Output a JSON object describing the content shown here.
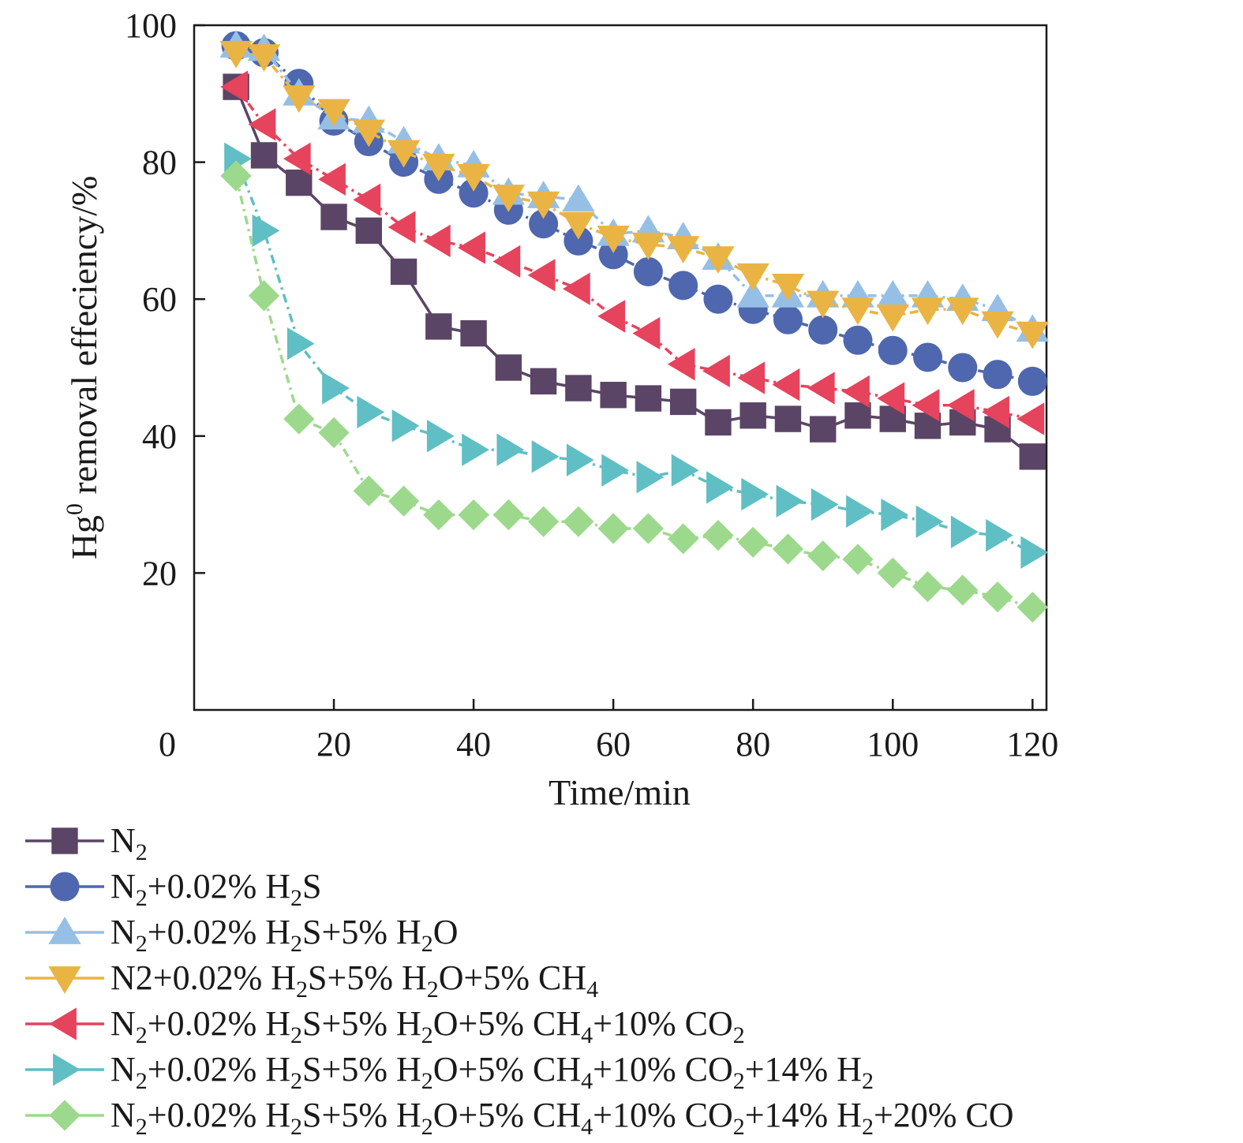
{
  "chart_data": {
    "type": "line",
    "title": "",
    "xlabel": "Time/min",
    "ylabel": {
      "base": "Hg",
      "sup": "0",
      "rest": " removal effeciency/%"
    },
    "xlim": [
      0,
      122
    ],
    "ylim": [
      0,
      100
    ],
    "xticks": [
      20,
      40,
      60,
      80,
      100,
      120
    ],
    "yticks": [
      20,
      40,
      60,
      80,
      100
    ],
    "origin_label": "0",
    "grid": false,
    "legend_position": "bottom-left",
    "x": [
      6,
      10,
      15,
      20,
      25,
      30,
      35,
      40,
      45,
      50,
      55,
      60,
      65,
      70,
      75,
      80,
      85,
      90,
      95,
      100,
      105,
      110,
      115,
      120
    ],
    "series": [
      {
        "name": "N2",
        "label_parts": [
          {
            "t": "N"
          },
          {
            "t": "2",
            "sub": true
          }
        ],
        "color": "#5b4566",
        "marker": "square",
        "line": "solid",
        "values": [
          91,
          81,
          77,
          72,
          70,
          64,
          56,
          55,
          50,
          48,
          47,
          46,
          45.5,
          45,
          42,
          43,
          42.5,
          41,
          43,
          42.5,
          41.5,
          42,
          41,
          37
        ]
      },
      {
        "name": "N2+0.02% H2S",
        "label_parts": [
          {
            "t": "N"
          },
          {
            "t": "2",
            "sub": true
          },
          {
            "t": "+0.02% H"
          },
          {
            "t": "2",
            "sub": true
          },
          {
            "t": "S"
          }
        ],
        "color": "#4e67ae",
        "marker": "circle",
        "line": "dashdot",
        "values": [
          97,
          96,
          91.5,
          86,
          83,
          80,
          77.5,
          75.5,
          73,
          71,
          68.5,
          66.5,
          64,
          62,
          60,
          58.5,
          57,
          55.5,
          54,
          52.5,
          51.5,
          50,
          49,
          48
        ]
      },
      {
        "name": "N2+0.02% H2S+5% H2O",
        "label_parts": [
          {
            "t": "N"
          },
          {
            "t": "2",
            "sub": true
          },
          {
            "t": "+0.02% H"
          },
          {
            "t": "2",
            "sub": true
          },
          {
            "t": "S+5% H"
          },
          {
            "t": "2",
            "sub": true
          },
          {
            "t": "O"
          }
        ],
        "color": "#96bfe5",
        "marker": "triangle-up",
        "line": "dashdot",
        "values": [
          97,
          96.5,
          90,
          86.5,
          86,
          83,
          80.5,
          79.5,
          75.5,
          75,
          74.5,
          69.5,
          70,
          69,
          66,
          60.5,
          60.5,
          60.5,
          60.5,
          60.5,
          60.5,
          60,
          58.5,
          55.5
        ]
      },
      {
        "name": "N2+0.02% H2S+5% H2O+5% CH4",
        "label_parts": [
          {
            "t": "N2+0.02% H"
          },
          {
            "t": "2",
            "sub": true
          },
          {
            "t": "S+5% H"
          },
          {
            "t": "2",
            "sub": true
          },
          {
            "t": "O+5% CH"
          },
          {
            "t": "4",
            "sub": true
          }
        ],
        "color": "#eab444",
        "marker": "triangle-down",
        "line": "dashdot",
        "values": [
          96,
          95.5,
          89.5,
          87.5,
          84.5,
          81.5,
          79.5,
          78,
          75,
          74,
          71,
          69,
          68,
          67.5,
          66,
          63.5,
          62,
          59.5,
          58.5,
          57.5,
          58.5,
          58.5,
          56.5,
          55
        ]
      },
      {
        "name": "N2+0.02% H2S+5% H2O+5% CH4+10% CO2",
        "label_parts": [
          {
            "t": "N"
          },
          {
            "t": "2",
            "sub": true
          },
          {
            "t": "+0.02% H"
          },
          {
            "t": "2",
            "sub": true
          },
          {
            "t": "S+5% H"
          },
          {
            "t": "2",
            "sub": true
          },
          {
            "t": "O+5% CH"
          },
          {
            "t": "4",
            "sub": true
          },
          {
            "t": "+10% CO"
          },
          {
            "t": "2",
            "sub": true
          }
        ],
        "color": "#e6435d",
        "marker": "triangle-left",
        "line": "dashdot",
        "values": [
          91,
          85.5,
          80.5,
          77.5,
          74.5,
          70.5,
          68.5,
          67.5,
          65.5,
          63.5,
          61.5,
          57.5,
          55,
          50.5,
          49.5,
          48.5,
          47.5,
          47,
          46.5,
          45.5,
          44.5,
          44.5,
          43.5,
          42.5
        ]
      },
      {
        "name": "N2+0.02% H2S+5% H2O+5% CH4+10% CO2+14% H2",
        "label_parts": [
          {
            "t": "N"
          },
          {
            "t": "2",
            "sub": true
          },
          {
            "t": "+0.02% H"
          },
          {
            "t": "2",
            "sub": true
          },
          {
            "t": "S+5% H"
          },
          {
            "t": "2",
            "sub": true
          },
          {
            "t": "O+5% CH"
          },
          {
            "t": "4",
            "sub": true
          },
          {
            "t": "+10% CO"
          },
          {
            "t": "2",
            "sub": true
          },
          {
            "t": "+14% H"
          },
          {
            "t": "2",
            "sub": true
          }
        ],
        "color": "#5fbfc4",
        "marker": "triangle-right",
        "line": "dashdot",
        "values": [
          80.5,
          70,
          53.5,
          47,
          43.5,
          41.5,
          40,
          38,
          38,
          37,
          36.5,
          35,
          34,
          35,
          32.5,
          31.5,
          30.5,
          30,
          29,
          28.5,
          27.5,
          26,
          25.5,
          23
        ]
      },
      {
        "name": "N2+0.02% H2S+5% H2O+5% CH4+10% CO2+14% H2+20% CO",
        "label_parts": [
          {
            "t": "N"
          },
          {
            "t": "2",
            "sub": true
          },
          {
            "t": "+0.02% H"
          },
          {
            "t": "2",
            "sub": true
          },
          {
            "t": "S+5% H"
          },
          {
            "t": "2",
            "sub": true
          },
          {
            "t": "O+5% CH"
          },
          {
            "t": "4",
            "sub": true
          },
          {
            "t": "+10% CO"
          },
          {
            "t": "2",
            "sub": true
          },
          {
            "t": "+14% H"
          },
          {
            "t": "2",
            "sub": true
          },
          {
            "t": "+20% CO"
          }
        ],
        "color": "#9dd98c",
        "marker": "diamond",
        "line": "dashdot",
        "values": [
          78,
          60.5,
          42.5,
          40.5,
          32,
          30.5,
          28.5,
          28.5,
          28.5,
          27.5,
          27.5,
          26.5,
          26.5,
          25,
          25.5,
          24.5,
          23.5,
          22.5,
          22,
          20,
          18,
          17.5,
          16.5,
          15
        ]
      }
    ]
  }
}
